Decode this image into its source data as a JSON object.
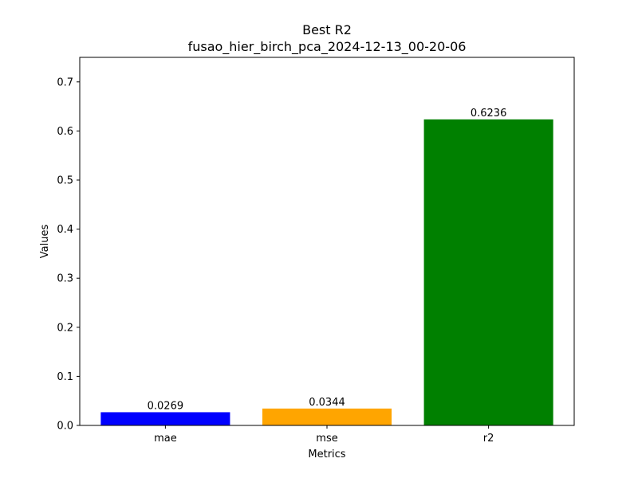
{
  "chart_data": {
    "type": "bar",
    "title": "Best R2",
    "subtitle": "fusao_hier_birch_pca_2024-12-13_00-20-06",
    "xlabel": "Metrics",
    "ylabel": "Values",
    "categories": [
      "mae",
      "mse",
      "r2"
    ],
    "values": [
      0.0269,
      0.0344,
      0.6236
    ],
    "value_labels": [
      "0.0269",
      "0.0344",
      "0.6236"
    ],
    "colors": [
      "#0000ff",
      "#ffa500",
      "#008000"
    ],
    "ylim": [
      0,
      0.75
    ],
    "yticks": [
      0.0,
      0.1,
      0.2,
      0.3,
      0.4,
      0.5,
      0.6,
      0.7
    ],
    "ytick_labels": [
      "0.0",
      "0.1",
      "0.2",
      "0.3",
      "0.4",
      "0.5",
      "0.6",
      "0.7"
    ],
    "grid": false,
    "legend": "none"
  }
}
